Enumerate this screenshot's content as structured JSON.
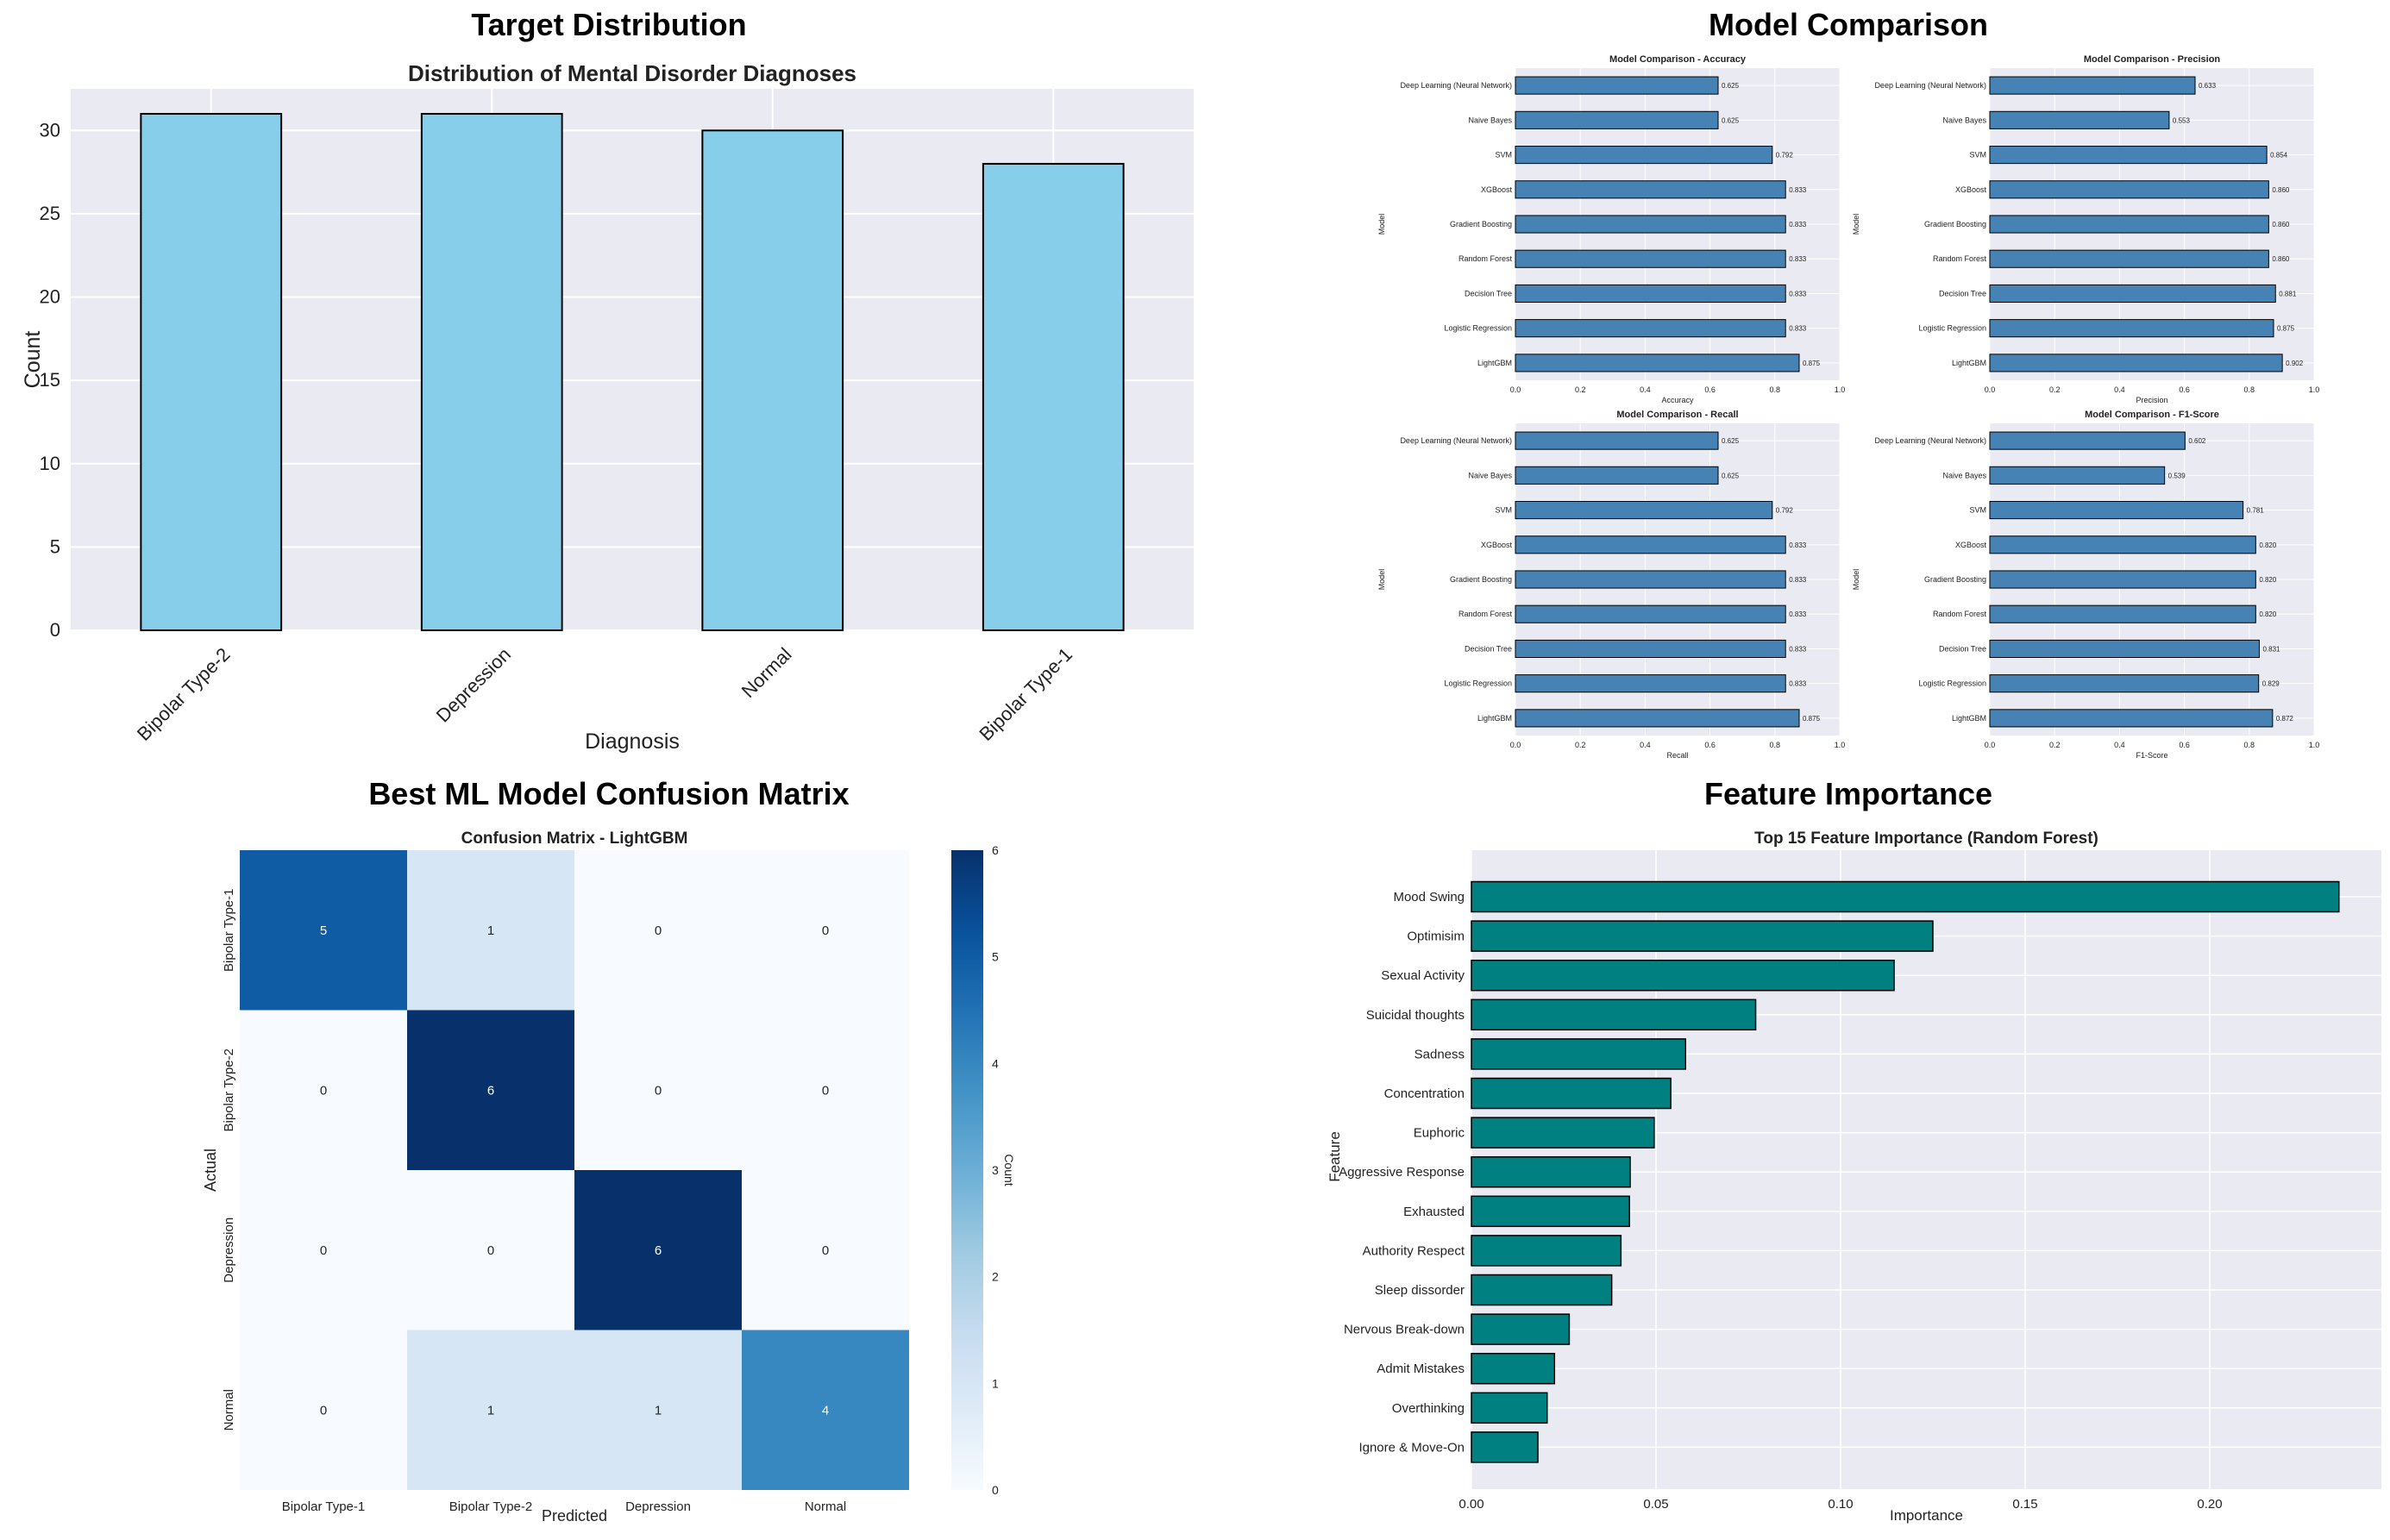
{
  "panels": {
    "target": {
      "title": "Target Distribution"
    },
    "model_comparison": {
      "title": "Model Comparison"
    },
    "confusion": {
      "title": "Best ML Model Confusion Matrix"
    },
    "features": {
      "title": "Feature Importance"
    }
  },
  "colors": {
    "bar_blue": "#87ceeb",
    "steel": "#4682b4",
    "teal": "#008080",
    "plot_bg": "#eaeaf2",
    "edge": "#000000"
  },
  "chart_data": [
    {
      "id": "target",
      "type": "bar",
      "title": "Distribution of Mental Disorder Diagnoses",
      "xlabel": "Diagnosis",
      "ylabel": "Count",
      "categories": [
        "Bipolar Type-2",
        "Depression",
        "Normal",
        "Bipolar Type-1"
      ],
      "values": [
        31,
        31,
        30,
        28
      ],
      "ylim": [
        0,
        32.5
      ],
      "yticks": [
        "0",
        "5",
        "10",
        "15",
        "20",
        "25",
        "30"
      ],
      "grid": true
    },
    {
      "id": "mc",
      "type": "bar",
      "orientation": "horizontal",
      "categories": [
        "Deep Learning (Neural Network)",
        "Naive Bayes",
        "SVM",
        "XGBoost",
        "Gradient Boosting",
        "Random Forest",
        "Decision Tree",
        "Logistic Regression",
        "LightGBM"
      ],
      "ylabel": "Model",
      "xlim": [
        0,
        1.0
      ],
      "xticks": [
        "0.0",
        "0.2",
        "0.4",
        "0.6",
        "0.8",
        "1.0"
      ],
      "subplots": [
        {
          "title": "Model Comparison - Accuracy",
          "xlabel": "Accuracy",
          "values": [
            0.625,
            0.625,
            0.792,
            0.833,
            0.833,
            0.833,
            0.833,
            0.833,
            0.875
          ],
          "labels": [
            "0.625",
            "0.625",
            "0.792",
            "0.833",
            "0.833",
            "0.833",
            "0.833",
            "0.833",
            "0.875"
          ]
        },
        {
          "title": "Model Comparison - Precision",
          "xlabel": "Precision",
          "values": [
            0.633,
            0.553,
            0.854,
            0.86,
            0.86,
            0.86,
            0.881,
            0.875,
            0.902
          ],
          "labels": [
            "0.633",
            "0.553",
            "0.854",
            "0.860",
            "0.860",
            "0.860",
            "0.881",
            "0.875",
            "0.902"
          ]
        },
        {
          "title": "Model Comparison - Recall",
          "xlabel": "Recall",
          "values": [
            0.625,
            0.625,
            0.792,
            0.833,
            0.833,
            0.833,
            0.833,
            0.833,
            0.875
          ],
          "labels": [
            "0.625",
            "0.625",
            "0.792",
            "0.833",
            "0.833",
            "0.833",
            "0.833",
            "0.833",
            "0.875"
          ]
        },
        {
          "title": "Model Comparison - F1-Score",
          "xlabel": "F1-Score",
          "values": [
            0.602,
            0.539,
            0.781,
            0.82,
            0.82,
            0.82,
            0.831,
            0.829,
            0.872
          ],
          "labels": [
            "0.602",
            "0.539",
            "0.781",
            "0.820",
            "0.820",
            "0.820",
            "0.831",
            "0.829",
            "0.872"
          ]
        }
      ]
    },
    {
      "id": "cm",
      "type": "heatmap",
      "title": "Confusion Matrix - LightGBM",
      "xlabel": "Predicted",
      "ylabel": "Actual",
      "rows": [
        "Bipolar Type-1",
        "Bipolar Type-2",
        "Depression",
        "Normal"
      ],
      "cols": [
        "Bipolar Type-1",
        "Bipolar Type-2",
        "Depression",
        "Normal"
      ],
      "values": [
        [
          5,
          1,
          0,
          0
        ],
        [
          0,
          6,
          0,
          0
        ],
        [
          0,
          0,
          6,
          0
        ],
        [
          0,
          1,
          1,
          4
        ]
      ],
      "colorbar_label": "Count",
      "colorbar_ticks": [
        "0",
        "1",
        "2",
        "3",
        "4",
        "5",
        "6"
      ],
      "vmin": 0,
      "vmax": 6
    },
    {
      "id": "fi",
      "type": "bar",
      "orientation": "horizontal",
      "title": "Top 15 Feature Importance (Random Forest)",
      "xlabel": "Importance",
      "ylabel": "Feature",
      "categories": [
        "Mood Swing",
        "Optimisim",
        "Sexual Activity",
        "Suicidal thoughts",
        "Sadness",
        "Concentration",
        "Euphoric",
        "Aggressive Response",
        "Exhausted",
        "Authority Respect",
        "Sleep dissorder",
        "Nervous Break-down",
        "Admit Mistakes",
        "Overthinking",
        "Ignore & Move-On"
      ],
      "values": [
        0.235,
        0.125,
        0.1145,
        0.077,
        0.058,
        0.054,
        0.0495,
        0.043,
        0.0428,
        0.0405,
        0.038,
        0.0265,
        0.0225,
        0.0205,
        0.018
      ],
      "xlim": [
        0,
        0.2465
      ],
      "xticks": [
        "0.00",
        "0.05",
        "0.10",
        "0.15",
        "0.20"
      ]
    }
  ]
}
